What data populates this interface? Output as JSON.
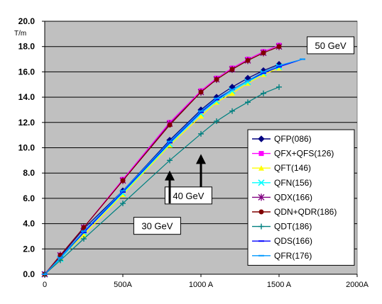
{
  "chart_data": {
    "type": "line",
    "y_unit": "T/m",
    "x_tick_labels": [
      "0",
      "500A",
      "1000 A",
      "1500 A",
      "2000A"
    ],
    "y_tick_labels": [
      "0.0",
      "2.0",
      "4.0",
      "6.0",
      "8.0",
      "10.0",
      "12.0",
      "14.0",
      "16.0",
      "18.0",
      "20.0"
    ],
    "xlim": [
      0,
      2000
    ],
    "ylim": [
      0,
      20
    ],
    "x_ticks": [
      0,
      500,
      1000,
      1500,
      2000
    ],
    "y_ticks": [
      0,
      2,
      4,
      6,
      8,
      10,
      12,
      14,
      16,
      18,
      20
    ],
    "grid": "horizontal",
    "plot_background": "#c0c0c0",
    "legend_position": "right",
    "series": [
      {
        "name": "QFP(086)",
        "color": "#000080",
        "marker": "diamond",
        "x": [
          0,
          100,
          250,
          500,
          800,
          1000,
          1100,
          1200,
          1300,
          1400,
          1500
        ],
        "y": [
          0.0,
          1.4,
          3.6,
          6.6,
          10.6,
          13.0,
          14.0,
          14.8,
          15.5,
          16.1,
          16.6
        ]
      },
      {
        "name": "QFX+QFS(126)",
        "color": "#ff00ff",
        "marker": "square",
        "x": [
          0,
          100,
          250,
          500,
          800,
          1000,
          1100,
          1200,
          1300,
          1400,
          1500
        ],
        "y": [
          0.0,
          1.5,
          3.7,
          7.5,
          12.0,
          14.5,
          15.5,
          16.3,
          17.0,
          17.6,
          18.1
        ]
      },
      {
        "name": "QFT(146)",
        "color": "#ffff00",
        "marker": "triangle",
        "x": [
          0,
          100,
          250,
          500,
          800,
          1000,
          1100,
          1200,
          1300,
          1400,
          1500
        ],
        "y": [
          0.0,
          1.3,
          3.1,
          6.3,
          10.2,
          12.5,
          13.6,
          14.3,
          15.1,
          15.8,
          16.3
        ]
      },
      {
        "name": "QFN(156)",
        "color": "#00ffff",
        "marker": "x",
        "x": [
          0,
          100,
          250,
          500,
          800,
          1000,
          1100,
          1200,
          1300,
          1400,
          1500
        ],
        "y": [
          0.0,
          1.2,
          3.3,
          6.4,
          10.3,
          12.7,
          13.7,
          14.5,
          15.2,
          15.9,
          16.4
        ]
      },
      {
        "name": "QDX(166)",
        "color": "#800080",
        "marker": "asterisk",
        "x": [
          0,
          100,
          250,
          500,
          800,
          1000,
          1100,
          1200,
          1300,
          1400,
          1500
        ],
        "y": [
          0.0,
          1.5,
          3.7,
          7.4,
          11.9,
          14.4,
          15.4,
          16.2,
          16.9,
          17.5,
          18.0
        ]
      },
      {
        "name": "QDN+QDR(186)",
        "color": "#800000",
        "marker": "circle",
        "x": [
          0,
          100,
          250,
          500,
          800,
          1000,
          1100,
          1200,
          1300,
          1400,
          1500
        ],
        "y": [
          0.0,
          1.5,
          3.7,
          7.4,
          11.8,
          14.4,
          15.4,
          16.2,
          16.9,
          17.5,
          18.0
        ]
      },
      {
        "name": "QDT(186)",
        "color": "#008080",
        "marker": "plus",
        "x": [
          0,
          100,
          250,
          500,
          800,
          1000,
          1100,
          1200,
          1300,
          1400,
          1500
        ],
        "y": [
          0.0,
          1.1,
          2.8,
          5.6,
          9.0,
          11.1,
          12.1,
          12.9,
          13.6,
          14.3,
          14.8
        ]
      },
      {
        "name": "QDS(166)",
        "color": "#0000ff",
        "marker": "dash",
        "x": [
          0,
          100,
          250,
          500,
          800,
          1000,
          1100,
          1200,
          1300,
          1400,
          1500,
          1650
        ],
        "y": [
          0.0,
          1.3,
          3.3,
          6.5,
          10.4,
          12.8,
          13.8,
          14.6,
          15.3,
          15.9,
          16.4,
          17.0
        ]
      },
      {
        "name": "QFR(176)",
        "color": "#0099ff",
        "marker": "dash",
        "x": [
          0,
          100,
          250,
          500,
          800,
          1000,
          1100,
          1200,
          1300,
          1400,
          1500,
          1650
        ],
        "y": [
          0.0,
          1.3,
          3.4,
          6.6,
          10.5,
          12.9,
          13.9,
          14.6,
          15.3,
          16.0,
          16.5,
          17.0
        ]
      }
    ],
    "annotations": [
      {
        "text": "50 GeV",
        "arrow": false,
        "box_at": {
          "x": 1680,
          "y": 18.1
        },
        "box_align": "middle-left"
      },
      {
        "text": "40 GeV",
        "arrow": true,
        "arrow_from_y": 6.8,
        "arrow_to_y": 9.5,
        "arrow_x": 1000,
        "box_at": {
          "x": 920,
          "y": 6.9
        },
        "box_align": "top-center"
      },
      {
        "text": "30 GeV",
        "arrow": true,
        "arrow_from_y": 5.6,
        "arrow_to_y": 8.2,
        "arrow_x": 800,
        "box_at": {
          "x": 720,
          "y": 4.5
        },
        "box_align": "top-center"
      }
    ]
  }
}
